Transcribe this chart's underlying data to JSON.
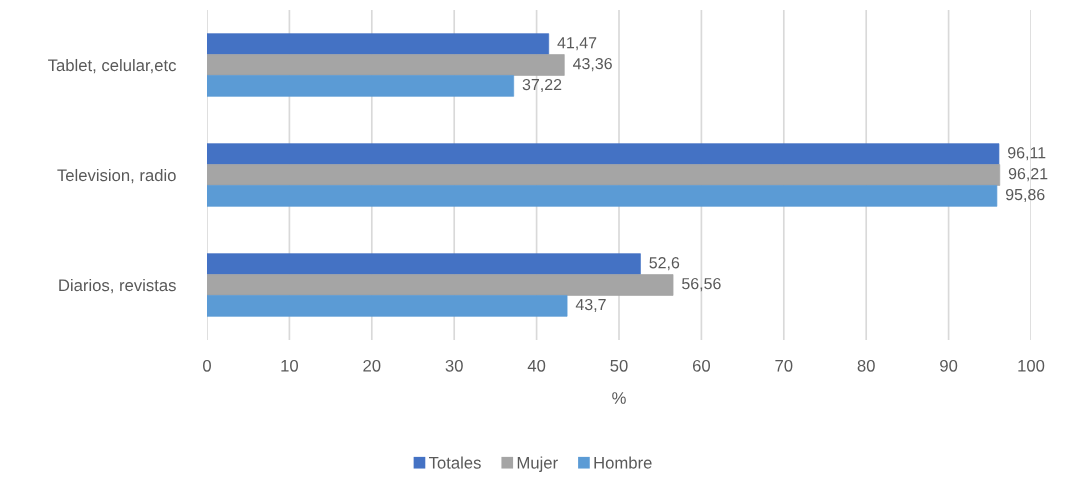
{
  "chart_data": {
    "type": "bar",
    "orientation": "horizontal",
    "categories": [
      "Tablet, celular,etc",
      "Television, radio",
      "Diarios, revistas"
    ],
    "series": [
      {
        "name": "Totales",
        "color": "#4472c4",
        "values": [
          41.47,
          96.11,
          52.6
        ],
        "value_labels": [
          "41,47",
          "96,11",
          "52,6"
        ]
      },
      {
        "name": "Mujer",
        "color": "#a5a5a5",
        "values": [
          43.36,
          96.21,
          56.56
        ],
        "value_labels": [
          "43,36",
          "96,21",
          "56,56"
        ]
      },
      {
        "name": "Hombre",
        "color": "#5b9bd5",
        "values": [
          37.22,
          95.86,
          43.7
        ],
        "value_labels": [
          "37,22",
          "95,86",
          "43,7"
        ]
      }
    ],
    "xlabel": "%",
    "xlim": [
      0,
      100
    ],
    "xticks": [
      0,
      10,
      20,
      30,
      40,
      50,
      60,
      70,
      80,
      90,
      100
    ],
    "grid": "x",
    "legend": "bottom"
  }
}
